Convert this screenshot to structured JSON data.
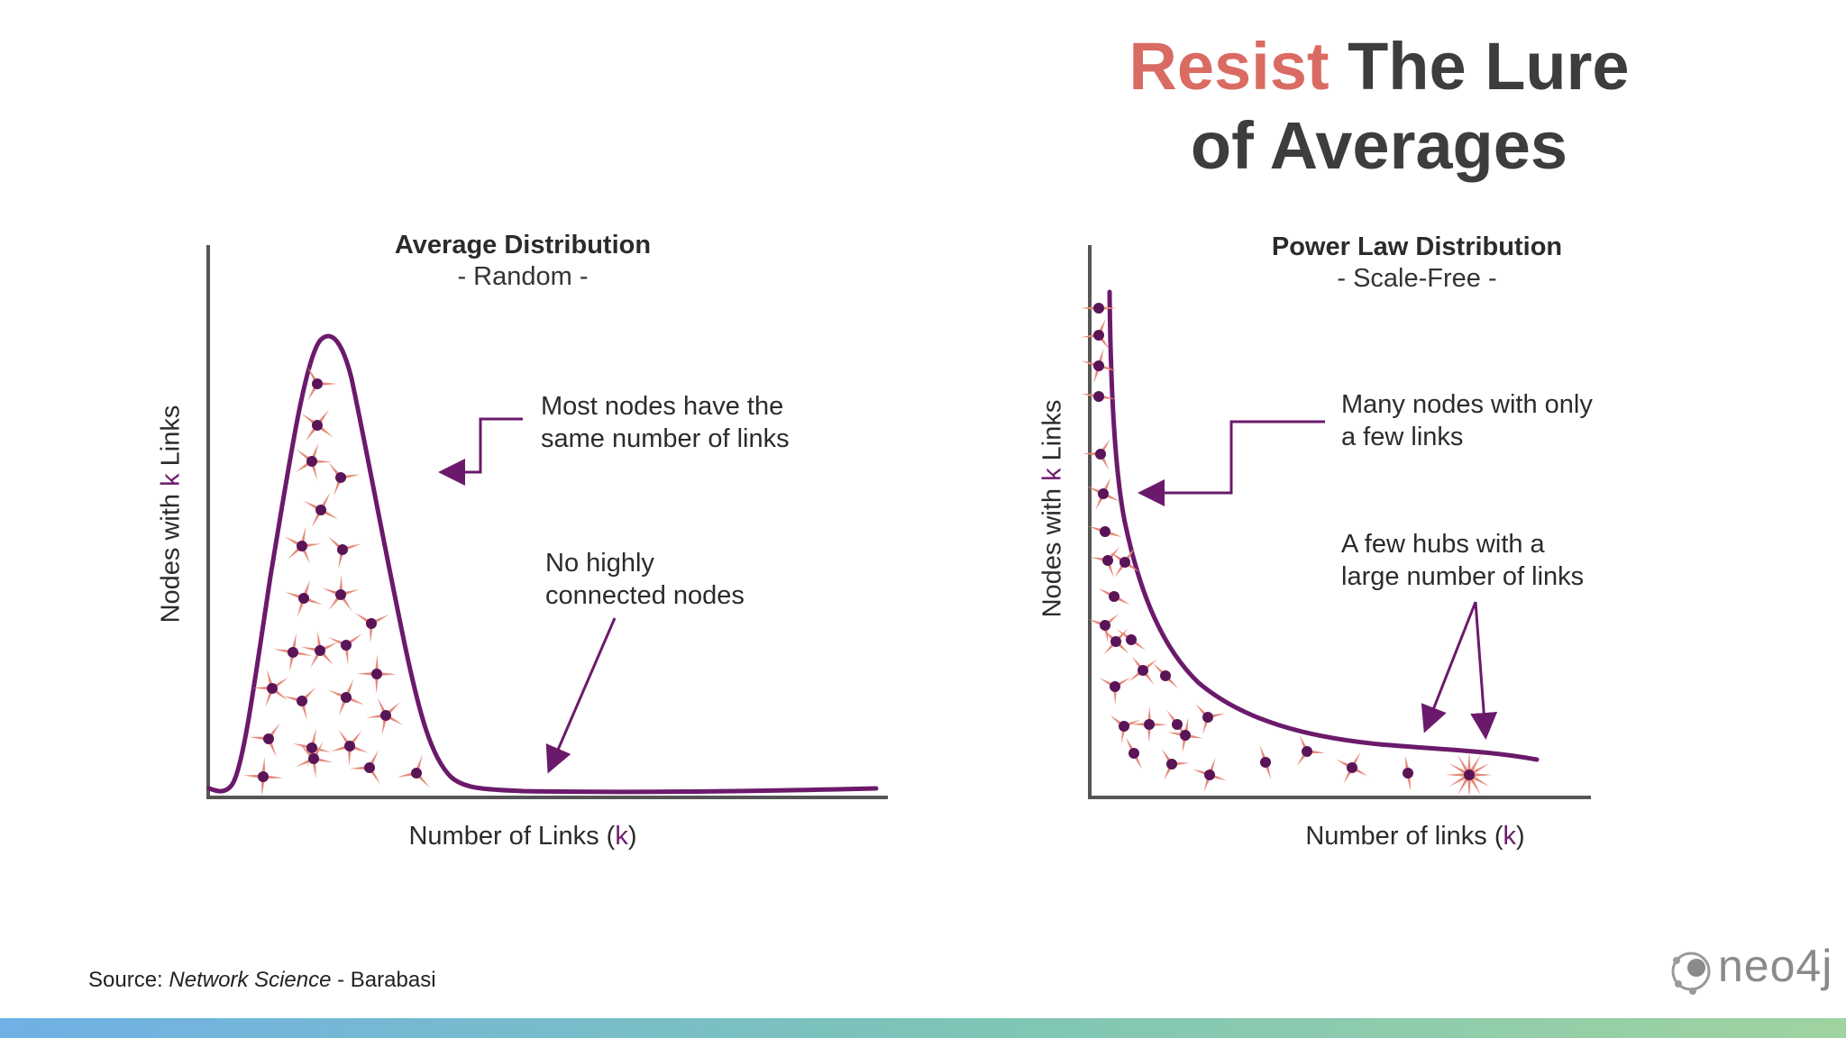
{
  "title": {
    "accent": "Resist",
    "rest_line1": " The Lure",
    "line2": "of Averages"
  },
  "left_chart": {
    "title": "Average Distribution",
    "subtitle": "- Random -",
    "ylabel_pre": "Nodes with ",
    "ylabel_k": "k",
    "ylabel_post": " Links",
    "xlabel_pre": "Number of Links (",
    "xlabel_k": "k",
    "xlabel_post": ")",
    "annotation1_line1": "Most nodes have the",
    "annotation1_line2": "same number of links",
    "annotation2_line1": "No highly",
    "annotation2_line2": "connected nodes"
  },
  "right_chart": {
    "title": "Power Law Distribution",
    "subtitle": "- Scale-Free -",
    "ylabel_pre": "Nodes with ",
    "ylabel_k": "k",
    "ylabel_post": " Links",
    "xlabel_pre": "Number of links (",
    "xlabel_k": "k",
    "xlabel_post": ")",
    "annotation1_line1": "Many nodes with only",
    "annotation1_line2": "a few links",
    "annotation2_line1": "A few hubs with a",
    "annotation2_line2": "large number of links"
  },
  "source": {
    "prefix": "Source: ",
    "book": "Network Science",
    "suffix": " - Barabasi"
  },
  "logo": {
    "text": "neo4j"
  },
  "colors": {
    "accent": "#d96b63",
    "curve": "#6b1a6b",
    "node": "#5a1458",
    "spike": "#e58a7a",
    "axis": "#555555"
  }
}
